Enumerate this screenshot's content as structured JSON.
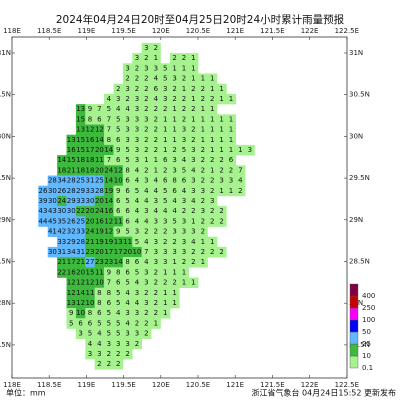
{
  "header": {
    "title": "2024年04月24日20时至04月25日20时24小时累计雨量预报"
  },
  "xticks": [
    {
      "value": 118,
      "label": "118E"
    },
    {
      "value": 118.5,
      "label": "118.5E"
    },
    {
      "value": 119,
      "label": "119E"
    },
    {
      "value": 119.5,
      "label": "119.5E"
    },
    {
      "value": 120,
      "label": "120E"
    },
    {
      "value": 120.5,
      "label": "120.5E"
    },
    {
      "value": 121,
      "label": "121E"
    },
    {
      "value": 121.5,
      "label": "121.5E"
    },
    {
      "value": 122,
      "label": "122E"
    },
    {
      "value": 122.5,
      "label": "122.5E"
    }
  ],
  "yticks": [
    {
      "value": 27.5,
      "label": "27.5N"
    },
    {
      "value": 28,
      "label": "28N"
    },
    {
      "value": 28.5,
      "label": "28.5N"
    },
    {
      "value": 29,
      "label": "29N"
    },
    {
      "value": 29.5,
      "label": "29.5N"
    },
    {
      "value": 30,
      "label": "30N"
    },
    {
      "value": 30.5,
      "label": "30.5N"
    },
    {
      "value": 31,
      "label": "31N"
    }
  ],
  "legend": {
    "levels": [
      0.1,
      10,
      25,
      50,
      100,
      250,
      400
    ],
    "colors": [
      "#a6f28f",
      "#3dba3d",
      "#61b8ff",
      "#0000fe",
      "#fa00fa",
      "#c80000",
      "#800040"
    ]
  },
  "grid": [
    [
      null,
      null,
      null,
      null,
      null,
      null,
      null,
      null,
      null,
      null,
      null,
      3,
      2
    ],
    [
      null,
      null,
      null,
      null,
      null,
      null,
      null,
      null,
      null,
      null,
      3,
      2,
      1,
      null,
      2,
      2,
      1
    ],
    [
      null,
      null,
      null,
      null,
      null,
      null,
      null,
      null,
      null,
      3,
      2,
      3,
      3,
      5,
      1,
      1,
      1
    ],
    [
      null,
      null,
      null,
      null,
      null,
      null,
      null,
      null,
      null,
      2,
      2,
      2,
      4,
      5,
      3,
      2,
      1,
      1,
      1
    ],
    [
      null,
      null,
      null,
      null,
      null,
      null,
      null,
      null,
      2,
      3,
      2,
      2,
      6,
      3,
      2,
      1,
      2,
      2,
      1,
      1
    ],
    [
      null,
      null,
      null,
      null,
      null,
      null,
      null,
      4,
      3,
      2,
      3,
      2,
      4,
      3,
      2,
      2,
      1,
      2,
      2,
      1,
      1
    ],
    [
      null,
      null,
      null,
      null,
      13,
      9,
      7,
      5,
      4,
      4,
      3,
      2,
      2,
      2,
      1,
      2,
      2,
      1,
      1
    ],
    [
      null,
      null,
      null,
      null,
      15,
      8,
      6,
      7,
      5,
      3,
      3,
      3,
      2,
      1,
      1,
      2,
      1,
      1,
      1,
      1,
      1
    ],
    [
      null,
      null,
      null,
      null,
      13,
      12,
      12,
      7,
      5,
      3,
      3,
      2,
      2,
      1,
      1,
      3,
      2,
      1,
      1,
      1,
      1
    ],
    [
      null,
      null,
      null,
      13,
      15,
      16,
      14,
      8,
      6,
      3,
      3,
      2,
      2,
      1,
      1,
      3,
      2,
      1,
      1,
      1,
      1
    ],
    [
      null,
      null,
      null,
      16,
      15,
      17,
      20,
      14,
      9,
      5,
      3,
      2,
      2,
      1,
      2,
      5,
      3,
      2,
      1,
      1,
      1,
      1,
      3
    ],
    [
      null,
      null,
      14,
      15,
      18,
      18,
      11,
      7,
      6,
      5,
      3,
      1,
      1,
      6,
      3,
      4,
      3,
      2,
      2,
      2,
      6
    ],
    [
      null,
      null,
      18,
      21,
      18,
      18,
      20,
      24,
      12,
      8,
      4,
      2,
      1,
      2,
      3,
      5,
      4,
      2,
      1,
      2,
      2,
      7
    ],
    [
      null,
      28,
      34,
      28,
      25,
      31,
      25,
      14,
      10,
      6,
      4,
      3,
      4,
      6,
      8,
      6,
      3,
      2,
      2,
      3,
      3,
      4
    ],
    [
      26,
      30,
      26,
      28,
      29,
      33,
      28,
      19,
      9,
      6,
      5,
      4,
      4,
      5,
      6,
      4,
      3,
      3,
      2,
      1,
      1,
      2
    ],
    [
      39,
      30,
      24,
      29,
      33,
      30,
      20,
      14,
      6,
      5,
      4,
      4,
      3,
      5,
      4,
      3,
      4,
      2,
      3
    ],
    [
      43,
      43,
      30,
      30,
      22,
      20,
      24,
      16,
      6,
      6,
      4,
      3,
      4,
      4,
      4,
      2,
      2,
      3,
      2,
      2
    ],
    [
      44,
      45,
      35,
      26,
      25,
      20,
      16,
      12,
      11,
      6,
      4,
      4,
      3,
      3,
      5,
      3,
      1,
      2,
      2,
      2
    ],
    [
      null,
      41,
      42,
      32,
      33,
      24,
      19,
      12,
      9,
      5,
      3,
      2,
      2,
      2,
      3,
      3,
      3,
      2
    ],
    [
      null,
      null,
      33,
      29,
      28,
      21,
      19,
      19,
      13,
      11,
      5,
      4,
      3,
      2,
      2,
      3,
      4,
      1,
      1
    ],
    [
      null,
      30,
      31,
      34,
      31,
      23,
      20,
      17,
      17,
      20,
      10,
      7,
      3,
      3,
      3,
      3,
      2,
      2,
      2,
      2
    ],
    [
      null,
      null,
      21,
      17,
      21,
      27,
      23,
      23,
      14,
      8,
      6,
      4,
      3,
      3,
      1,
      2,
      2,
      1
    ],
    [
      null,
      null,
      22,
      16,
      20,
      15,
      11,
      9,
      8,
      6,
      5,
      3,
      2,
      1,
      1,
      1
    ],
    [
      null,
      null,
      null,
      12,
      12,
      12,
      10,
      7,
      6,
      5,
      4,
      3,
      2,
      2,
      2,
      1,
      1
    ],
    [
      null,
      null,
      null,
      12,
      14,
      11,
      8,
      8,
      5,
      4,
      3,
      2,
      2,
      1,
      1
    ],
    [
      null,
      null,
      null,
      13,
      12,
      10,
      8,
      6,
      5,
      4,
      4,
      3,
      2,
      1,
      1
    ],
    [
      null,
      null,
      null,
      9,
      10,
      8,
      6,
      5,
      4,
      3,
      3,
      2,
      2,
      1
    ],
    [
      null,
      null,
      null,
      5,
      6,
      6,
      5,
      5,
      5,
      4,
      2,
      2,
      1
    ],
    [
      null,
      null,
      null,
      null,
      3,
      5,
      4,
      5,
      5,
      3,
      3,
      2
    ],
    [
      null,
      null,
      null,
      null,
      null,
      4,
      4,
      3,
      3,
      3,
      2
    ],
    [
      null,
      null,
      null,
      null,
      null,
      3,
      3,
      2,
      2,
      2
    ],
    [
      null,
      null,
      null,
      null,
      null,
      null,
      2,
      2,
      2
    ]
  ],
  "footer": {
    "unit": "单位：mm",
    "issuer": "浙江省气象台 04月24日15:52 更新发布"
  }
}
